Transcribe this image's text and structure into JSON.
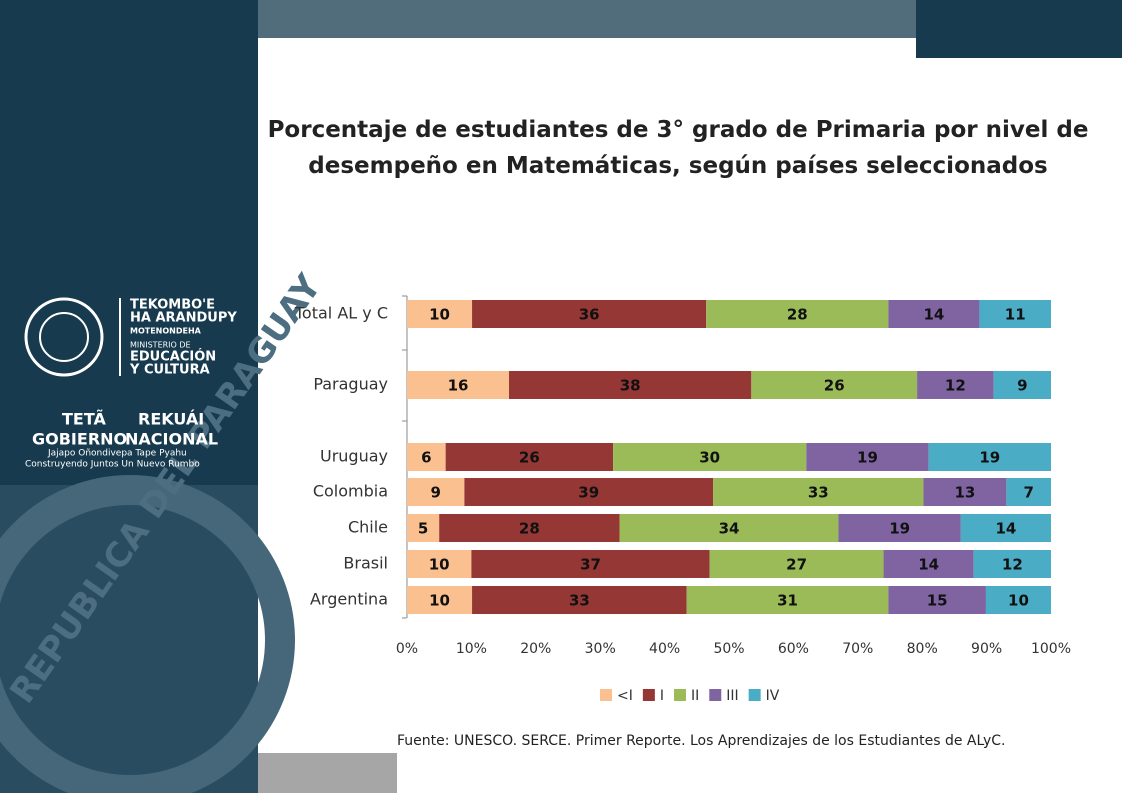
{
  "logo": {
    "seal": "REPUBLICA DEL PARAGUAY",
    "line1": "TEKOMBO'E",
    "line2": "HA ARANDUPY",
    "line3": "MOTENONDEHA",
    "line4": "MINISTERIO DE",
    "line5": "EDUCACIÓN",
    "line6": "Y CULTURA",
    "gov1": "TETÃ",
    "gov2": "REKUÁI",
    "gov3": "GOBIERNO",
    "gov4": "NACIONAL",
    "motto1": "Jajapo Oñondivepa Tape Pyahu",
    "motto2": "Construyendo Juntos Un Nuevo Rumbo"
  },
  "chart_data": {
    "type": "stacked-bar-percent",
    "orientation": "horizontal",
    "title": "Porcentaje de estudiantes de 3° grado de Primaria por nivel de desempeño en Matemáticas, según países seleccionados",
    "categories": [
      "Total AL y C",
      "Paraguay",
      "Uruguay",
      "Colombia",
      "Chile",
      "Brasil",
      "Argentina"
    ],
    "series": [
      {
        "name": "<I",
        "color": "#fac090",
        "values": [
          10,
          16,
          6,
          9,
          5,
          10,
          10
        ]
      },
      {
        "name": "I",
        "color": "#953735",
        "values": [
          36,
          38,
          26,
          39,
          28,
          37,
          33
        ]
      },
      {
        "name": "II",
        "color": "#9bbb59",
        "values": [
          28,
          26,
          30,
          33,
          34,
          27,
          31
        ]
      },
      {
        "name": "III",
        "color": "#8064a2",
        "values": [
          14,
          12,
          19,
          13,
          19,
          14,
          15
        ]
      },
      {
        "name": "IV",
        "color": "#4bacc6",
        "values": [
          11,
          9,
          19,
          7,
          14,
          12,
          10
        ]
      }
    ],
    "xlim": [
      0,
      100
    ],
    "xticks": [
      {
        "value": 0,
        "label": "0%"
      },
      {
        "value": 10,
        "label": "10%"
      },
      {
        "value": 20,
        "label": "20%"
      },
      {
        "value": 30,
        "label": "30%"
      },
      {
        "value": 40,
        "label": "40%"
      },
      {
        "value": 50,
        "label": "50%"
      },
      {
        "value": 60,
        "label": "60%"
      },
      {
        "value": 70,
        "label": "70%"
      },
      {
        "value": 80,
        "label": "80%"
      },
      {
        "value": 90,
        "label": "90%"
      },
      {
        "value": 100,
        "label": "100%"
      }
    ],
    "legend": "bottom",
    "source": "Fuente: UNESCO. SERCE. Primer Reporte. Los Aprendizajes de los Estudiantes de ALyC."
  }
}
